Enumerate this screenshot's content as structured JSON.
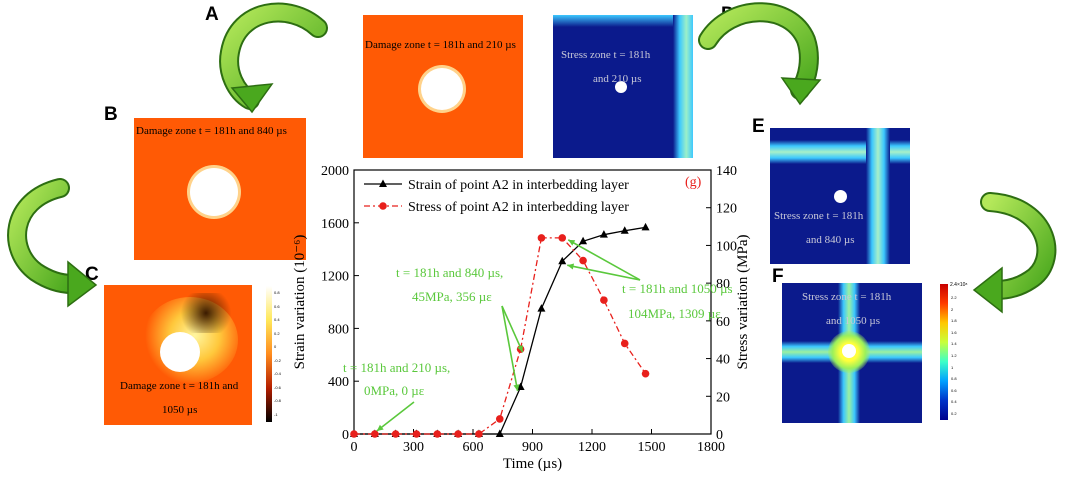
{
  "panel_letters": {
    "a": "A",
    "b": "B",
    "c": "C",
    "d": "D",
    "e": "E",
    "f": "F"
  },
  "panels": {
    "a_caption": "Damage zone t = 181h and 210 µs",
    "b_caption": "Damage zone t = 181h and 840 µs",
    "c_caption_line1": "Damage zone t = 181h and",
    "c_caption_line2": "1050 µs",
    "d_caption_line1": "Stress zone t = 181h",
    "d_caption_line2": "and 210 µs",
    "e_caption_line1": "Stress zone t = 181h",
    "e_caption_line2": "and 840 µs",
    "f_caption_line1": "Stress zone t = 181h",
    "f_caption_line2": "and 1050 µs",
    "f_colorbar_top": "2.4×10⁸",
    "f_colorbar_ticks": [
      "2.2",
      "2",
      "1.8",
      "1.6",
      "1.4",
      "1.2",
      "1",
      "0.8",
      "0.6",
      "0.4",
      "0.2"
    ],
    "c_colorbar_ticks": [
      "0.8",
      "0.6",
      "0.4",
      "0.2",
      "0",
      "-0.2",
      "-0.4",
      "-0.6",
      "-0.8",
      "-1"
    ]
  },
  "colors": {
    "strain": "#000000",
    "stress": "#e8201c",
    "annotation": "#5ac83c",
    "damage_orange": "#ff5a05",
    "stress_blue": "#0b1a8c",
    "arrow_green": "#8cd23c"
  },
  "chart_data": {
    "type": "line",
    "panel_label": "(g)",
    "xlabel": "Time (µs)",
    "ylabel_left": "Strain variation (10⁻⁶)",
    "ylabel_right": "Stress variation (MPa)",
    "xlim": [
      0,
      1800
    ],
    "ylim_left": [
      0,
      2000
    ],
    "ylim_right": [
      0,
      140
    ],
    "x_ticks": [
      "0",
      "300",
      "600",
      "900",
      "1200",
      "1500",
      "1800"
    ],
    "y_ticks_left": [
      "0",
      "400",
      "800",
      "1200",
      "1600",
      "2000"
    ],
    "y_ticks_right": [
      "0",
      "20",
      "40",
      "60",
      "80",
      "100",
      "120",
      "140"
    ],
    "series": [
      {
        "name": "Strain of point A2 in interbedding layer",
        "axis": "left",
        "marker": "triangle",
        "x": [
          0,
          105,
          210,
          315,
          420,
          525,
          630,
          735,
          840,
          945,
          1050,
          1155,
          1260,
          1365,
          1470
        ],
        "y": [
          0,
          0,
          0,
          0,
          0,
          0,
          0,
          0,
          356,
          950,
          1309,
          1460,
          1510,
          1540,
          1565
        ]
      },
      {
        "name": "Stress of point A2 in interbedding layer",
        "axis": "right",
        "marker": "circle",
        "x": [
          0,
          105,
          210,
          315,
          420,
          525,
          630,
          735,
          840,
          945,
          1050,
          1155,
          1260,
          1365,
          1470
        ],
        "y": [
          0,
          0,
          0,
          0,
          0,
          0,
          0,
          8,
          45,
          104,
          104,
          92,
          71,
          48,
          32
        ]
      }
    ],
    "annotations": [
      {
        "line1": "t = 181h and 210 µs,",
        "line2": "0MPa, 0 µε"
      },
      {
        "line1": "t = 181h and 840 µs,",
        "line2": "45MPa, 356 µε"
      },
      {
        "line1": "t = 181h and 1050 µs",
        "line2": "104MPa, 1309 µε"
      }
    ]
  }
}
